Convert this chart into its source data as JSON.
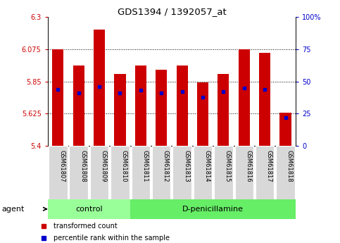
{
  "title": "GDS1394 / 1392057_at",
  "samples": [
    "GSM61807",
    "GSM61808",
    "GSM61809",
    "GSM61810",
    "GSM61811",
    "GSM61812",
    "GSM61813",
    "GSM61814",
    "GSM61815",
    "GSM61816",
    "GSM61817",
    "GSM61818"
  ],
  "bar_values": [
    6.075,
    5.96,
    6.21,
    5.9,
    5.96,
    5.93,
    5.96,
    5.845,
    5.9,
    6.075,
    6.05,
    5.63
  ],
  "percentile_values": [
    44,
    41,
    46,
    41,
    43,
    41,
    42,
    38,
    42,
    45,
    44,
    22
  ],
  "ymin": 5.4,
  "ymax": 6.3,
  "yticks": [
    5.4,
    5.625,
    5.85,
    6.075,
    6.3
  ],
  "ytick_labels": [
    "5.4",
    "5.625",
    "5.85",
    "6.075",
    "6.3"
  ],
  "right_yticks": [
    0,
    25,
    50,
    75,
    100
  ],
  "right_ytick_labels": [
    "0",
    "25",
    "50",
    "75",
    "100%"
  ],
  "bar_color": "#cc0000",
  "percentile_color": "#0000cc",
  "groups": [
    {
      "label": "control",
      "start": 0,
      "end": 3,
      "color": "#99ff99"
    },
    {
      "label": "D-penicillamine",
      "start": 4,
      "end": 11,
      "color": "#66ee66"
    }
  ],
  "legend_items": [
    {
      "label": "transformed count",
      "color": "#cc0000"
    },
    {
      "label": "percentile rank within the sample",
      "color": "#0000cc"
    }
  ],
  "agent_label": "agent",
  "left_tick_color": "#cc0000",
  "right_tick_color": "#0000cc",
  "bar_width": 0.55,
  "fig_width": 4.83,
  "fig_height": 3.45,
  "dpi": 100
}
